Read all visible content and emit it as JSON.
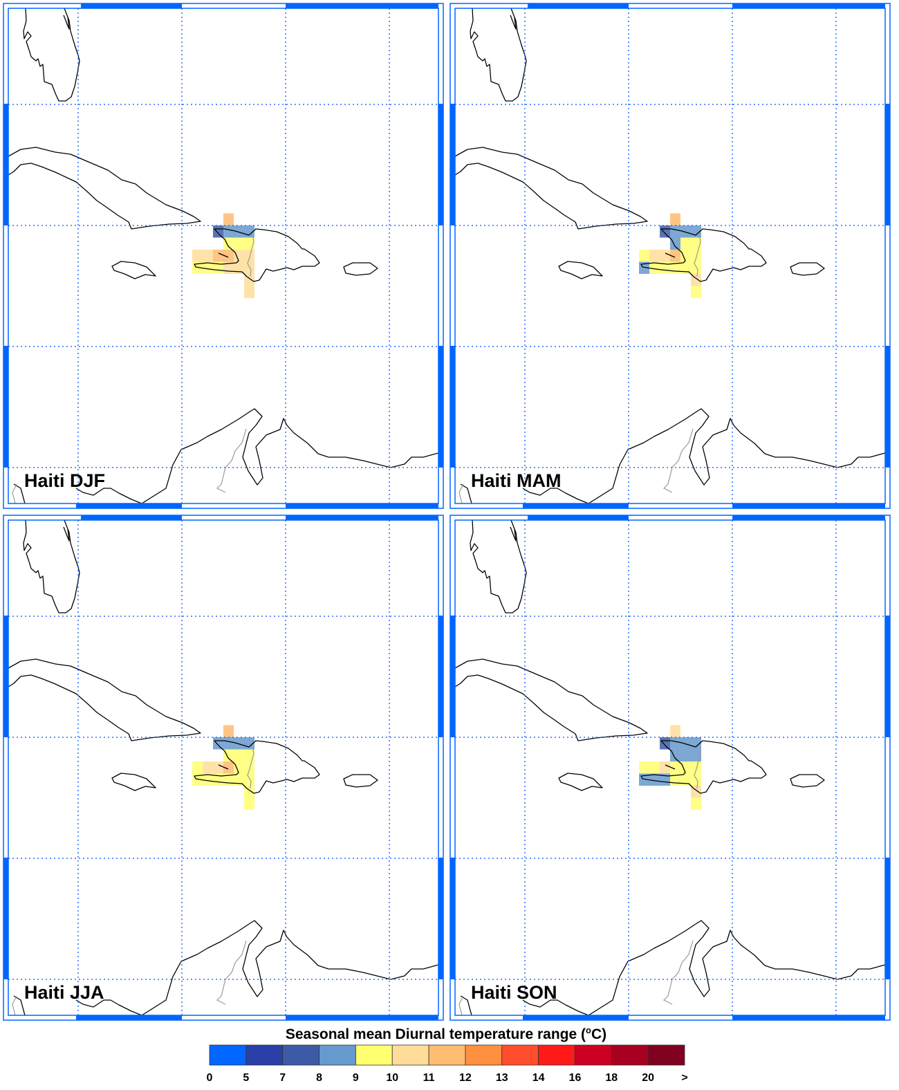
{
  "colorbar": {
    "title": "Seasonal mean Diurnal temperature range (",
    "title_sup": "o",
    "title_unit": "C)",
    "ticks": [
      "0",
      "5",
      "7",
      "8",
      "9",
      "10",
      "11",
      "12",
      "13",
      "14",
      "16",
      "18",
      "20",
      ">"
    ],
    "bins": [
      {
        "bin": "0-5",
        "color": "#0066ff"
      },
      {
        "bin": "5-7",
        "color": "#2a3fa8"
      },
      {
        "bin": "7-8",
        "color": "#3d5aa6"
      },
      {
        "bin": "8-9",
        "color": "#6699cc"
      },
      {
        "bin": "9-10",
        "color": "#ffff70"
      },
      {
        "bin": "10-11",
        "color": "#ffdd99"
      },
      {
        "bin": "11-12",
        "color": "#ffbb70"
      },
      {
        "bin": "12-13",
        "color": "#ff9040"
      },
      {
        "bin": "13-14",
        "color": "#ff4c2a"
      },
      {
        "bin": "14-16",
        "color": "#ff1a1a"
      },
      {
        "bin": "16-18",
        "color": "#cc0022"
      },
      {
        "bin": "18-20",
        "color": "#a80020"
      },
      {
        "bin": ">20",
        "color": "#800020"
      }
    ]
  },
  "map": {
    "type": "gridded-map",
    "grid_lon": [
      -80,
      -75,
      -70,
      -65
    ],
    "grid_lat": [
      25,
      20,
      15,
      10
    ],
    "cell_size_deg": 0.5,
    "gridline_color": "#2a6fff",
    "frame_color": "#0066ff"
  },
  "panels": [
    {
      "label": "Haiti DJF",
      "cells": [
        [
          -73.0,
          20.0,
          "11-12"
        ],
        [
          -73.5,
          19.5,
          "7-8"
        ],
        [
          -73.0,
          19.5,
          "8-9"
        ],
        [
          -72.5,
          19.5,
          "8-9"
        ],
        [
          -72.0,
          19.5,
          "8-9"
        ],
        [
          -73.0,
          19.0,
          "9-10"
        ],
        [
          -72.5,
          19.0,
          "9-10"
        ],
        [
          -72.0,
          19.0,
          "9-10"
        ],
        [
          -74.5,
          18.5,
          "10-11"
        ],
        [
          -74.0,
          18.5,
          "10-11"
        ],
        [
          -73.5,
          18.5,
          "11-12"
        ],
        [
          -73.0,
          18.5,
          "11-12"
        ],
        [
          -72.5,
          18.5,
          "10-11"
        ],
        [
          -72.0,
          18.5,
          "10-11"
        ],
        [
          -74.5,
          18.0,
          "9-10"
        ],
        [
          -74.0,
          18.0,
          "9-10"
        ],
        [
          -73.5,
          18.0,
          "9-10"
        ],
        [
          -73.0,
          18.0,
          "10-11"
        ],
        [
          -72.5,
          18.0,
          "10-11"
        ],
        [
          -72.0,
          18.0,
          "10-11"
        ],
        [
          -72.0,
          17.5,
          "10-11"
        ],
        [
          -72.0,
          17.0,
          "10-11"
        ]
      ]
    },
    {
      "label": "Haiti MAM",
      "cells": [
        [
          -73.0,
          20.0,
          "11-12"
        ],
        [
          -73.5,
          19.5,
          "7-8"
        ],
        [
          -73.0,
          19.5,
          "8-9"
        ],
        [
          -72.5,
          19.5,
          "8-9"
        ],
        [
          -72.0,
          19.5,
          "8-9"
        ],
        [
          -73.0,
          19.0,
          "8-9"
        ],
        [
          -72.5,
          19.0,
          "9-10"
        ],
        [
          -72.0,
          19.0,
          "9-10"
        ],
        [
          -74.5,
          18.5,
          "9-10"
        ],
        [
          -74.0,
          18.5,
          "10-11"
        ],
        [
          -73.5,
          18.5,
          "10-11"
        ],
        [
          -73.0,
          18.5,
          "11-12"
        ],
        [
          -72.5,
          18.5,
          "9-10"
        ],
        [
          -72.0,
          18.5,
          "9-10"
        ],
        [
          -74.5,
          18.0,
          "8-9"
        ],
        [
          -74.0,
          18.0,
          "9-10"
        ],
        [
          -73.5,
          18.0,
          "9-10"
        ],
        [
          -73.0,
          18.0,
          "9-10"
        ],
        [
          -72.5,
          18.0,
          "9-10"
        ],
        [
          -72.0,
          18.0,
          "9-10"
        ],
        [
          -72.0,
          17.5,
          "10-11"
        ],
        [
          -72.0,
          17.0,
          "9-10"
        ]
      ]
    },
    {
      "label": "Haiti JJA",
      "cells": [
        [
          -73.0,
          20.0,
          "11-12"
        ],
        [
          -73.5,
          19.5,
          "8-9"
        ],
        [
          -73.0,
          19.5,
          "8-9"
        ],
        [
          -72.5,
          19.5,
          "8-9"
        ],
        [
          -72.0,
          19.5,
          "8-9"
        ],
        [
          -73.0,
          19.0,
          "9-10"
        ],
        [
          -72.5,
          19.0,
          "9-10"
        ],
        [
          -72.0,
          19.0,
          "9-10"
        ],
        [
          -74.5,
          18.5,
          "9-10"
        ],
        [
          -74.0,
          18.5,
          "10-11"
        ],
        [
          -73.5,
          18.5,
          "10-11"
        ],
        [
          -73.0,
          18.5,
          "11-12"
        ],
        [
          -72.5,
          18.5,
          "9-10"
        ],
        [
          -72.0,
          18.5,
          "9-10"
        ],
        [
          -74.5,
          18.0,
          "9-10"
        ],
        [
          -74.0,
          18.0,
          "9-10"
        ],
        [
          -73.5,
          18.0,
          "9-10"
        ],
        [
          -73.0,
          18.0,
          "9-10"
        ],
        [
          -72.5,
          18.0,
          "9-10"
        ],
        [
          -72.0,
          18.0,
          "9-10"
        ],
        [
          -72.0,
          17.5,
          "9-10"
        ],
        [
          -72.0,
          17.0,
          "9-10"
        ]
      ]
    },
    {
      "label": "Haiti SON",
      "cells": [
        [
          -73.0,
          20.0,
          "10-11"
        ],
        [
          -73.5,
          19.5,
          "7-8"
        ],
        [
          -73.0,
          19.5,
          "8-9"
        ],
        [
          -72.5,
          19.5,
          "8-9"
        ],
        [
          -72.0,
          19.5,
          "8-9"
        ],
        [
          -73.0,
          19.0,
          "8-9"
        ],
        [
          -72.5,
          19.0,
          "8-9"
        ],
        [
          -72.0,
          19.0,
          "8-9"
        ],
        [
          -74.5,
          18.5,
          "9-10"
        ],
        [
          -74.0,
          18.5,
          "9-10"
        ],
        [
          -73.5,
          18.5,
          "10-11"
        ],
        [
          -73.0,
          18.5,
          "9-10"
        ],
        [
          -72.5,
          18.5,
          "9-10"
        ],
        [
          -72.0,
          18.5,
          "9-10"
        ],
        [
          -74.5,
          18.0,
          "8-9"
        ],
        [
          -74.0,
          18.0,
          "8-9"
        ],
        [
          -73.5,
          18.0,
          "8-9"
        ],
        [
          -73.0,
          18.0,
          "9-10"
        ],
        [
          -72.5,
          18.0,
          "9-10"
        ],
        [
          -72.0,
          18.0,
          "9-10"
        ],
        [
          -72.0,
          17.5,
          "10-11"
        ],
        [
          -72.0,
          17.0,
          "9-10"
        ]
      ]
    }
  ]
}
